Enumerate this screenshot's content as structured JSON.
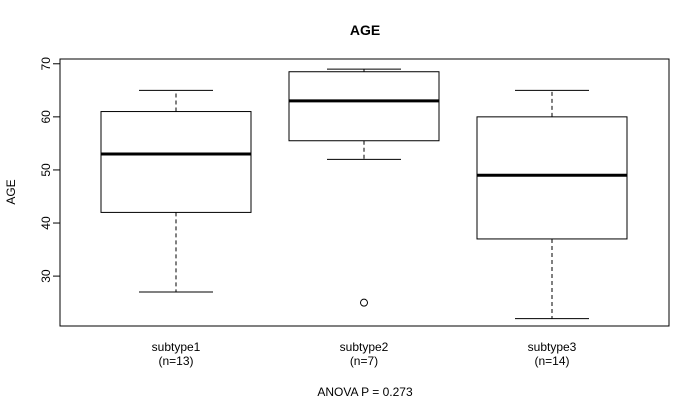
{
  "chart_data": {
    "type": "boxplot",
    "title": "AGE",
    "xlabel": "",
    "ylabel": "AGE",
    "ylim": [
      20.6,
      70.9
    ],
    "yticks": [
      30,
      40,
      50,
      60,
      70
    ],
    "categories": [
      {
        "name": "subtype1",
        "n_label": "(n=13)",
        "whisker_low": 27,
        "q1": 42,
        "median": 53,
        "q3": 61,
        "whisker_high": 65,
        "outliers": []
      },
      {
        "name": "subtype2",
        "n_label": "(n=7)",
        "whisker_low": 52,
        "q1": 55.5,
        "median": 63,
        "q3": 68.5,
        "whisker_high": 69,
        "outliers": [
          25
        ]
      },
      {
        "name": "subtype3",
        "n_label": "(n=14)",
        "whisker_low": 22,
        "q1": 37,
        "median": 49,
        "q3": 60,
        "whisker_high": 65,
        "outliers": []
      }
    ],
    "footnote": "ANOVA P = 0.273"
  }
}
